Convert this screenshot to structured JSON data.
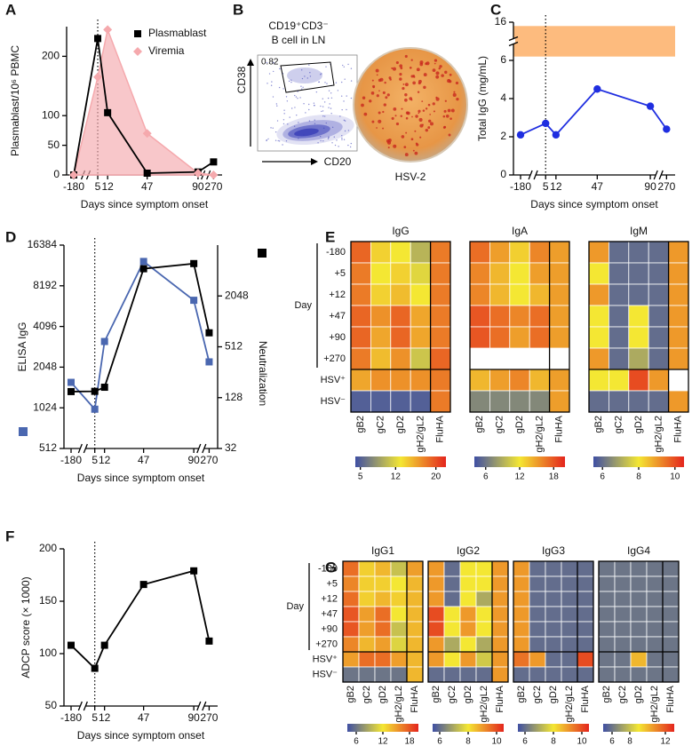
{
  "chart_data": [
    {
      "type": "line",
      "panel": "A",
      "ylabel": "Plasmablast/10⁶ PBMC",
      "xlabel": "Days since symptom onset",
      "categories": [
        "-180",
        "5",
        "12",
        "47",
        "90",
        "270"
      ],
      "ylim": [
        0,
        250
      ],
      "yticks": [
        0,
        50,
        100,
        200
      ],
      "legend": "upper right",
      "series": [
        {
          "name": "Plasmablast",
          "color": "#000000",
          "marker": "square",
          "values": [
            0,
            230,
            105,
            3,
            5,
            22
          ]
        },
        {
          "name": "Viremia",
          "color": "#f5a9ad",
          "marker": "diamond",
          "fill": true,
          "values": [
            0,
            165,
            245,
            70,
            3,
            0
          ]
        }
      ]
    },
    {
      "type": "image",
      "panel": "B",
      "title": "CD19⁺CD3⁻",
      "subtitle": "B cell in LN",
      "gate_value": 0.82,
      "xlabel": "CD20",
      "ylabel": "CD38",
      "caption": "HSV-2"
    },
    {
      "type": "line",
      "panel": "C",
      "ylabel": "Total IgG (mg/mL)",
      "xlabel": "Days since symptom onset",
      "categories": [
        "-180",
        "5",
        "12",
        "47",
        "90",
        "270"
      ],
      "ylim": [
        0,
        16
      ],
      "yticks": [
        0,
        2,
        4,
        6,
        16
      ],
      "axis_break": true,
      "range_band": {
        "values": [
          7,
          15
        ],
        "color": "#fdbb7e"
      },
      "series": [
        {
          "color": "#1f2ee0",
          "marker": "circle",
          "values": [
            2.1,
            2.7,
            2.1,
            4.5,
            3.6,
            2.4
          ]
        }
      ]
    },
    {
      "type": "line",
      "panel": "D",
      "ylabel": "ELISA IgG",
      "y2label": "Neutralization",
      "xlabel": "Days since symptom onset",
      "categories": [
        "-180",
        "5",
        "12",
        "47",
        "90",
        "270"
      ],
      "yscale": "log",
      "ylim": [
        512,
        16384
      ],
      "yticks": [
        512,
        1024,
        2048,
        4096,
        8192,
        16384
      ],
      "y2lim": [
        32,
        8192
      ],
      "y2ticks": [
        32,
        128,
        512,
        2048
      ],
      "series": [
        {
          "color": "#4a67b0",
          "marker": "square",
          "values": [
            1580,
            1000,
            3170,
            12400,
            6400,
            2240
          ]
        },
        {
          "color": "#000000",
          "marker": "square",
          "axis": "y2",
          "values": [
            151,
            152,
            170,
            4300,
            4950,
            750
          ]
        }
      ]
    },
    {
      "type": "heatmap",
      "panel": "E",
      "row_group_label": "Day",
      "rows": [
        "-180",
        "+5",
        "+12",
        "+47",
        "+90",
        "+270",
        "HSV⁺",
        "HSV⁻"
      ],
      "columns": [
        "gB2",
        "gC2",
        "gD2",
        "gH2/gL2",
        "FluHA"
      ],
      "colormap": [
        "#3f4fa3",
        "#f4e733",
        "#e4251d"
      ],
      "blocks": [
        {
          "title": "IgG",
          "zlim": [
            4,
            22
          ],
          "zticks": [
            5,
            12,
            20
          ],
          "values": [
            [
              19,
              14,
              13,
              10,
              18
            ],
            [
              18,
              13,
              14,
              12,
              18
            ],
            [
              18,
              14,
              15,
              13,
              18
            ],
            [
              19,
              17,
              19,
              16,
              18
            ],
            [
              19,
              16,
              19,
              16,
              18
            ],
            [
              18,
              15,
              17,
              11,
              19
            ],
            [
              16,
              17,
              17,
              17,
              18
            ],
            [
              5,
              5,
              5,
              5,
              18
            ]
          ]
        },
        {
          "title": "IgA",
          "zlim": [
            4,
            20
          ],
          "zticks": [
            6,
            12,
            18
          ],
          "values": [
            [
              17,
              15,
              13,
              16,
              15
            ],
            [
              16,
              14,
              12,
              15,
              15
            ],
            [
              16,
              14,
              12,
              14,
              15
            ],
            [
              18,
              17,
              16,
              17,
              15
            ],
            [
              18,
              17,
              15,
              17,
              15
            ],
            [
              null,
              null,
              null,
              null,
              null
            ],
            [
              14,
              15,
              16,
              14,
              15
            ],
            [
              7,
              7,
              7,
              7,
              15
            ]
          ]
        },
        {
          "title": "IgM",
          "zlim": [
            5.5,
            10.5
          ],
          "zticks": [
            6,
            8,
            10
          ],
          "values": [
            [
              9,
              6,
              6,
              6,
              9
            ],
            [
              8,
              6,
              6,
              6,
              9
            ],
            [
              9,
              6,
              6,
              6,
              9
            ],
            [
              8,
              6,
              8,
              6,
              9
            ],
            [
              8,
              6,
              8,
              6,
              9
            ],
            [
              9,
              6,
              7,
              6,
              9
            ],
            [
              8,
              8,
              10,
              9,
              null
            ],
            [
              6,
              6,
              6,
              6,
              9
            ]
          ]
        }
      ]
    },
    {
      "type": "line",
      "panel": "F",
      "ylabel": "ADCP score (× 1000)",
      "xlabel": "Days since symptom onset",
      "categories": [
        "-180",
        "5",
        "12",
        "47",
        "90",
        "270"
      ],
      "ylim": [
        50,
        200
      ],
      "yticks": [
        50,
        100,
        150,
        200
      ],
      "series": [
        {
          "color": "#000000",
          "marker": "square",
          "values": [
            108,
            86,
            108,
            166,
            179,
            112
          ]
        }
      ]
    },
    {
      "type": "heatmap",
      "panel": "G",
      "row_group_label": "Day",
      "rows": [
        "-180",
        "+5",
        "+12",
        "+47",
        "+90",
        "+270",
        "HSV⁺",
        "HSV⁻"
      ],
      "columns": [
        "gB2",
        "gC2",
        "gD2",
        "gH2/gL2",
        "FluHA"
      ],
      "colormap": [
        "#3f4fa3",
        "#f4e733",
        "#e4251d"
      ],
      "blocks": [
        {
          "title": "IgG1",
          "zlim": [
            4,
            20
          ],
          "zticks": [
            6,
            12,
            18
          ],
          "values": [
            [
              17,
              13,
              14,
              10,
              15
            ],
            [
              16,
              13,
              13,
              12,
              14
            ],
            [
              17,
              13,
              14,
              13,
              14
            ],
            [
              18,
              15,
              17,
              12,
              14
            ],
            [
              18,
              15,
              17,
              10,
              14
            ],
            [
              16,
              14,
              15,
              11,
              14
            ],
            [
              15,
              17,
              17,
              15,
              14
            ],
            [
              6,
              6,
              6,
              6,
              14
            ]
          ]
        },
        {
          "title": "IgG2",
          "zlim": [
            5.5,
            10.5
          ],
          "zticks": [
            6,
            8,
            10
          ],
          "values": [
            [
              9,
              6,
              8,
              8,
              9
            ],
            [
              9,
              6,
              8,
              8,
              9
            ],
            [
              9,
              6,
              8,
              7,
              9
            ],
            [
              10,
              8,
              9,
              8,
              9
            ],
            [
              10,
              8,
              9,
              8,
              9
            ],
            [
              9,
              7,
              8,
              7,
              9
            ],
            [
              9,
              8,
              9,
              7.5,
              9
            ],
            [
              6,
              6,
              6,
              6,
              9
            ]
          ]
        },
        {
          "title": "IgG3",
          "zlim": [
            5.5,
            10.5
          ],
          "zticks": [
            6,
            8,
            10
          ],
          "values": [
            [
              9,
              6,
              6,
              6,
              6
            ],
            [
              9,
              6,
              6,
              6,
              6
            ],
            [
              9,
              6,
              6,
              6,
              6
            ],
            [
              9,
              6,
              6,
              6,
              6
            ],
            [
              9,
              6,
              6,
              6,
              6
            ],
            [
              9,
              6,
              6,
              6,
              6
            ],
            [
              9.5,
              9,
              6,
              6,
              10
            ],
            [
              6,
              6,
              6,
              6,
              6
            ]
          ]
        },
        {
          "title": "IgG4",
          "zlim": [
            5,
            13
          ],
          "zticks": [
            6,
            8,
            12
          ],
          "values": [
            [
              6,
              6,
              6,
              6,
              6
            ],
            [
              6,
              6,
              6,
              6,
              6
            ],
            [
              6,
              6,
              6,
              6,
              6
            ],
            [
              6,
              6,
              6,
              6,
              6
            ],
            [
              6,
              6,
              6,
              6,
              6
            ],
            [
              6,
              6,
              6,
              6,
              6
            ],
            [
              6,
              6,
              10,
              6,
              6
            ],
            [
              6,
              6,
              6,
              6,
              6
            ]
          ]
        }
      ]
    }
  ]
}
